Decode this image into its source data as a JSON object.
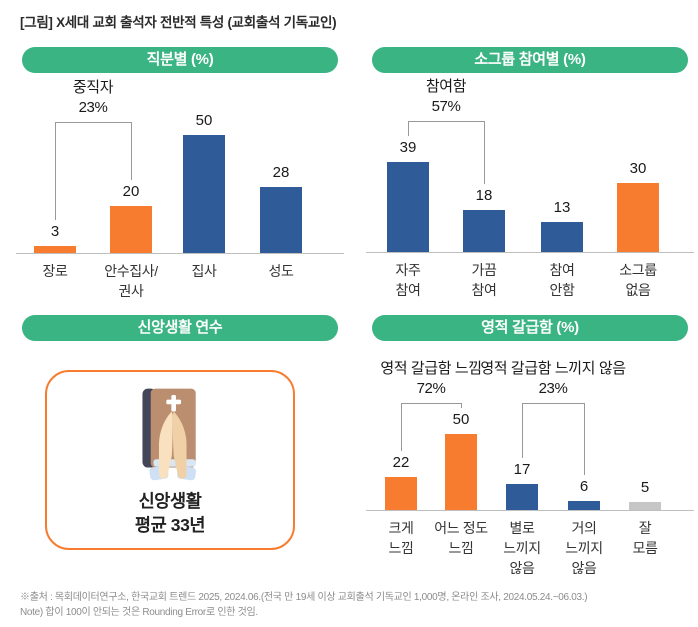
{
  "title": "[그림] X세대 교회 출석자 전반적 특성 (교회출석 기독교인)",
  "colors": {
    "green": "#3AB483",
    "orange": "#F87C2F",
    "blue": "#2F5C99",
    "gray": "#C6C6C6",
    "axis": "#BFBFBF",
    "bracket": "#999999"
  },
  "chart_data": [
    {
      "type": "bar",
      "title": "직분별 (%)",
      "categories": [
        "장로",
        "안수집사/\n권사",
        "집사",
        "성도"
      ],
      "values": [
        3,
        20,
        50,
        28
      ],
      "colors": [
        "orange",
        "orange",
        "blue",
        "blue"
      ],
      "xlabel": "",
      "ylabel": "",
      "ylim": [
        0,
        55
      ],
      "brackets": [
        {
          "label": "중직자",
          "value_label": "23%",
          "from": 0,
          "to": 1
        }
      ]
    },
    {
      "type": "bar",
      "title": "소그룹 참여별 (%)",
      "categories": [
        "자주\n참여",
        "가끔\n참여",
        "참여\n안함",
        "소그룹\n없음"
      ],
      "values": [
        39,
        18,
        13,
        30
      ],
      "colors": [
        "blue",
        "blue",
        "blue",
        "orange"
      ],
      "xlabel": "",
      "ylabel": "",
      "ylim": [
        0,
        55
      ],
      "brackets": [
        {
          "label": "참여함",
          "value_label": "57%",
          "from": 0,
          "to": 1
        }
      ]
    },
    {
      "type": "bar",
      "title": "영적 갈급함 (%)",
      "categories": [
        "크게\n느낌",
        "어느 정도\n느낌",
        "별로\n느끼지\n않음",
        "거의\n느끼지\n않음",
        "잘\n모름"
      ],
      "values": [
        22,
        50,
        17,
        6,
        5
      ],
      "colors": [
        "orange",
        "orange",
        "blue",
        "blue",
        "gray"
      ],
      "xlabel": "",
      "ylabel": "",
      "ylim": [
        0,
        55
      ],
      "brackets": [
        {
          "label": "영적 갈급함 느낌",
          "value_label": "72%",
          "from": 0,
          "to": 1
        },
        {
          "label": "영적 갈급함 느끼지 않음",
          "value_label": "23%",
          "from": 2,
          "to": 3
        }
      ]
    }
  ],
  "faith_panel": {
    "header": "신앙생활 연수",
    "icon": "praying-hands-bible-icon",
    "text_line1": "신앙생활",
    "text_line2": "평균 33년"
  },
  "footnote_line1": "※출처 : 목회데이터연구소, 한국교회 트렌드 2025, 2024.06.(전국 만 19세 이상 교회출석 기독교인 1,000명, 온라인 조사, 2024.05.24.~06.03.)",
  "footnote_line2": "Note) 합이 100이 안되는 것은 Rounding Error로 인한 것임."
}
